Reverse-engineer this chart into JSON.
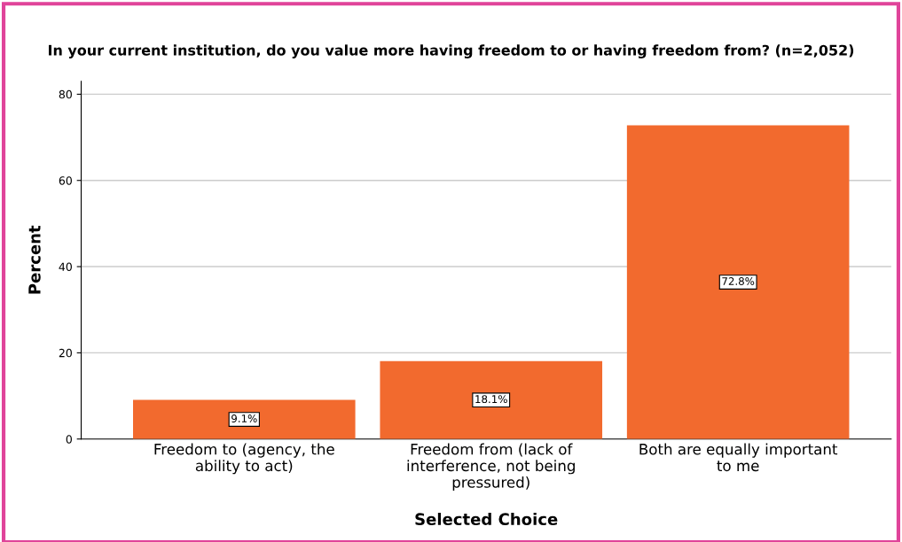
{
  "chart_data": {
    "type": "bar",
    "title": "In your current institution, do you value more having freedom to or having freedom from? (n=2,052)",
    "xlabel": "Selected Choice",
    "ylabel": "Percent",
    "categories": [
      "Freedom to (agency, the\nability to act)",
      "Freedom from (lack of\ninterference, not being\npressured)",
      "Both are equally important\nto me"
    ],
    "values": [
      9.1,
      18.1,
      72.8
    ],
    "value_labels": [
      "9.1%",
      "18.1%",
      "72.8%"
    ],
    "color": "#f26a2e",
    "ylim": [
      0,
      83
    ],
    "yticks": [
      0,
      20,
      40,
      60,
      80
    ],
    "grid": "y"
  }
}
